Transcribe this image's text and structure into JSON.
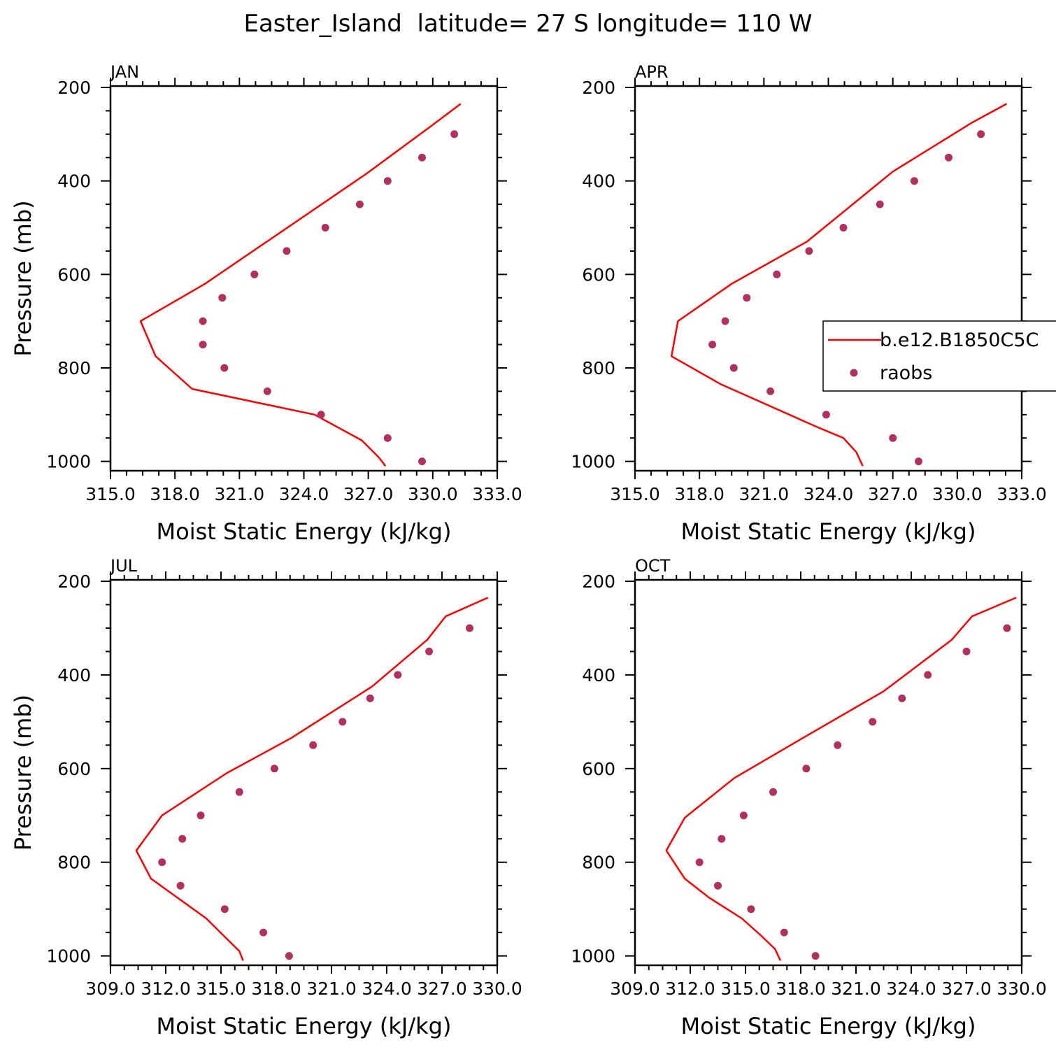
{
  "page": {
    "title": "Easter_Island  latitude= 27 S longitude= 110 W"
  },
  "colors": {
    "model": "#ff0000",
    "obs": "#b03060",
    "axis": "#000000"
  },
  "legend": {
    "model_label": "b.e12.B1850C5C",
    "obs_label": "raobs",
    "placement": "right side of APR panel"
  },
  "chart_data": [
    {
      "type": "line",
      "panel": "JAN",
      "xlabel": "Moist Static Energy (kJ/kg)",
      "ylabel": "Pressure (mb)",
      "xlim": [
        315.0,
        333.0
      ],
      "ylim": [
        1000,
        200
      ],
      "xticks": [
        "315.0",
        "318.0",
        "321.0",
        "324.0",
        "327.0",
        "330.0",
        "333.0"
      ],
      "yticks": [
        "200",
        "400",
        "600",
        "800",
        "1000"
      ],
      "series": [
        {
          "name": "b.e12.B1850C5C",
          "style": "line",
          "x": [
            327.8,
            327.5,
            326.7,
            324.5,
            318.8,
            317.1,
            316.4,
            319.4,
            326.9,
            330.0,
            331.3
          ],
          "y": [
            1010,
            992,
            955,
            900,
            845,
            775,
            700,
            620,
            385,
            280,
            235
          ]
        },
        {
          "name": "raobs",
          "style": "markers",
          "x": [
            329.5,
            327.9,
            324.8,
            322.3,
            320.3,
            319.3,
            319.3,
            320.2,
            321.7,
            323.2,
            325.0,
            326.6,
            327.9,
            329.5,
            331.0
          ],
          "y": [
            1000,
            950,
            900,
            850,
            800,
            750,
            700,
            650,
            600,
            550,
            500,
            450,
            400,
            350,
            300
          ]
        }
      ]
    },
    {
      "type": "line",
      "panel": "APR",
      "xlabel": "Moist Static Energy (kJ/kg)",
      "ylabel": "Pressure (mb)",
      "xlim": [
        315.0,
        333.0
      ],
      "ylim": [
        1000,
        200
      ],
      "xticks": [
        "315.0",
        "318.0",
        "321.0",
        "324.0",
        "327.0",
        "330.0",
        "333.0"
      ],
      "yticks": [
        "200",
        "400",
        "600",
        "800",
        "1000"
      ],
      "series": [
        {
          "name": "b.e12.B1850C5C",
          "style": "line",
          "x": [
            325.6,
            325.3,
            324.7,
            323.4,
            319.0,
            316.7,
            317.0,
            319.5,
            323.0,
            327.0,
            330.7,
            332.3
          ],
          "y": [
            1010,
            980,
            950,
            925,
            835,
            775,
            700,
            620,
            530,
            380,
            275,
            235
          ]
        },
        {
          "name": "raobs",
          "style": "markers",
          "x": [
            328.2,
            327.0,
            323.9,
            321.3,
            319.6,
            318.6,
            319.2,
            320.2,
            321.6,
            323.1,
            324.7,
            326.4,
            328.0,
            329.6,
            331.1
          ],
          "y": [
            1000,
            950,
            900,
            850,
            800,
            750,
            700,
            650,
            600,
            550,
            500,
            450,
            400,
            350,
            300
          ]
        }
      ]
    },
    {
      "type": "line",
      "panel": "JUL",
      "xlabel": "Moist Static Energy (kJ/kg)",
      "ylabel": "Pressure (mb)",
      "xlim": [
        309.0,
        330.0
      ],
      "ylim": [
        1000,
        200
      ],
      "xticks": [
        "309.0",
        "312.0",
        "315.0",
        "318.0",
        "321.0",
        "324.0",
        "327.0",
        "330.0"
      ],
      "yticks": [
        "200",
        "400",
        "600",
        "800",
        "1000"
      ],
      "series": [
        {
          "name": "b.e12.B1850C5C",
          "style": "line",
          "x": [
            316.2,
            316.0,
            315.1,
            314.2,
            311.2,
            310.4,
            311.8,
            315.3,
            318.8,
            323.2,
            326.2,
            327.2,
            329.5
          ],
          "y": [
            1010,
            990,
            955,
            920,
            835,
            775,
            700,
            610,
            535,
            425,
            325,
            275,
            235
          ]
        },
        {
          "name": "raobs",
          "style": "markers",
          "x": [
            318.7,
            317.3,
            315.2,
            312.8,
            311.8,
            312.9,
            313.9,
            316.0,
            317.9,
            320.0,
            321.6,
            323.1,
            324.6,
            326.3,
            328.5
          ],
          "y": [
            1000,
            950,
            900,
            850,
            800,
            750,
            700,
            650,
            600,
            550,
            500,
            450,
            400,
            350,
            300
          ]
        }
      ]
    },
    {
      "type": "line",
      "panel": "OCT",
      "xlabel": "Moist Static Energy (kJ/kg)",
      "ylabel": "Pressure (mb)",
      "xlim": [
        309.0,
        330.0
      ],
      "ylim": [
        1000,
        200
      ],
      "xticks": [
        "309.0",
        "312.0",
        "315.0",
        "318.0",
        "321.0",
        "324.0",
        "327.0",
        "330.0"
      ],
      "yticks": [
        "200",
        "400",
        "600",
        "800",
        "1000"
      ],
      "series": [
        {
          "name": "b.e12.B1850C5C",
          "style": "line",
          "x": [
            316.9,
            316.6,
            315.8,
            314.8,
            313.0,
            311.7,
            310.7,
            311.7,
            314.4,
            318.1,
            322.5,
            326.2,
            327.3,
            329.7
          ],
          "y": [
            1010,
            985,
            955,
            920,
            875,
            835,
            775,
            705,
            620,
            535,
            435,
            325,
            275,
            235
          ]
        },
        {
          "name": "raobs",
          "style": "markers",
          "x": [
            318.8,
            317.1,
            315.3,
            313.5,
            312.5,
            313.7,
            314.9,
            316.5,
            318.3,
            320.0,
            321.9,
            323.5,
            324.9,
            327.0,
            329.2
          ],
          "y": [
            1000,
            950,
            900,
            850,
            800,
            750,
            700,
            650,
            600,
            550,
            500,
            450,
            400,
            350,
            300
          ]
        }
      ]
    }
  ]
}
